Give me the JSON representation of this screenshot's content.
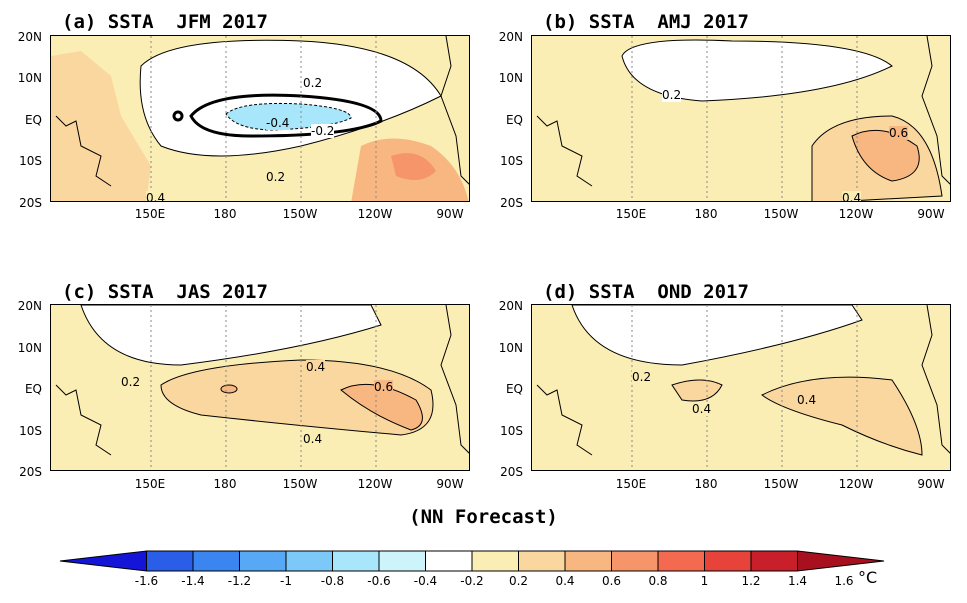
{
  "panels": [
    {
      "title": "(a) SSTA  JFM 2017",
      "contour_labels": [
        "0.2",
        "-0.4",
        "-0.2",
        "0.2",
        "0.4"
      ]
    },
    {
      "title": "(b) SSTA  AMJ 2017",
      "contour_labels": [
        "0.2",
        "0.6",
        "0.4"
      ]
    },
    {
      "title": "(c) SSTA  JAS 2017",
      "contour_labels": [
        "0.2",
        "0.4",
        "0.6",
        "0.4"
      ]
    },
    {
      "title": "(d) SSTA  OND 2017",
      "contour_labels": [
        "0.2",
        "0.4",
        "0.4"
      ]
    }
  ],
  "lat_labels": [
    "20N",
    "10N",
    "EQ",
    "10S",
    "20S"
  ],
  "lon_labels": [
    "150E",
    "180",
    "150W",
    "120W",
    "90W"
  ],
  "footer": "(NN Forecast)",
  "colorbar": {
    "labels": [
      "-1.6",
      "-1.4",
      "-1.2",
      "-1",
      "-0.8",
      "-0.6",
      "-0.4",
      "-0.2",
      "0.2",
      "0.4",
      "0.6",
      "0.8",
      "1",
      "1.2",
      "1.4",
      "1.6"
    ],
    "colors": [
      "#1515d8",
      "#2a5ee8",
      "#3a85f0",
      "#57a8f5",
      "#7cc8f8",
      "#a8e6fb",
      "#cdf4fb",
      "#ffffff",
      "#fbeeb4",
      "#fbd7a0",
      "#f8b681",
      "#f6956a",
      "#f36a50",
      "#e8433a",
      "#c81f2a",
      "#a81020"
    ],
    "unit": "°C"
  }
}
